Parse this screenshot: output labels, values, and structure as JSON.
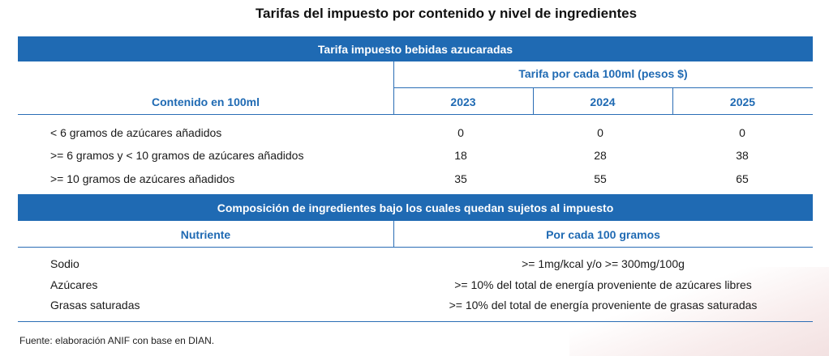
{
  "title": "Tarifas del impuesto por contenido y nivel de ingredientes",
  "section1": {
    "band_title": "Tarifa impuesto bebidas azucaradas",
    "tarifa_header": "Tarifa por cada 100ml (pesos $)",
    "content_header": "Contenido en 100ml",
    "years": [
      "2023",
      "2024",
      "2025"
    ],
    "rows": [
      {
        "label": "< 6 gramos de azúcares añadidos",
        "values": [
          "0",
          "0",
          "0"
        ]
      },
      {
        "label": ">= 6 gramos y < 10 gramos de azúcares añadidos",
        "values": [
          "18",
          "28",
          "38"
        ]
      },
      {
        "label": ">= 10 gramos de azúcares añadidos",
        "values": [
          "35",
          "55",
          "65"
        ]
      }
    ]
  },
  "section2": {
    "band_title": "Composición de ingredientes bajo los cuales quedan sujetos al impuesto",
    "col_nutriente": "Nutriente",
    "col_por_cada": "Por cada 100 gramos",
    "rows": [
      {
        "nutrient": "Sodio",
        "value": ">= 1mg/kcal y/o >= 300mg/100g"
      },
      {
        "nutrient": "Azúcares",
        "value": ">= 10% del total de energía proveniente de azúcares libres"
      },
      {
        "nutrient": "Grasas saturadas",
        "value": ">= 10% del total de energía proveniente de grasas saturadas"
      }
    ]
  },
  "footer": "Fuente: elaboración ANIF con base en DIAN."
}
